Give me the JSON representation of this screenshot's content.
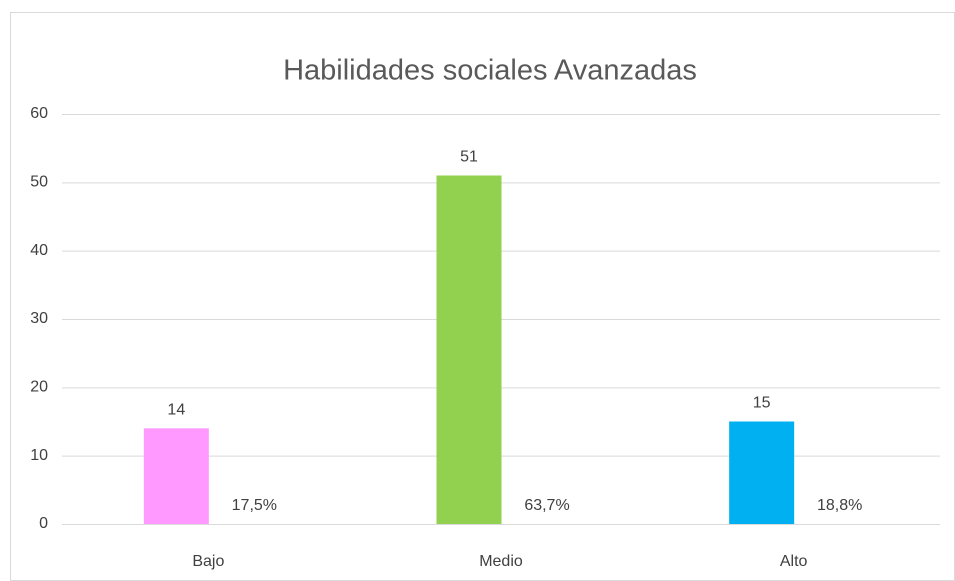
{
  "chart_data": {
    "type": "bar",
    "title": "Habilidades sociales Avanzadas",
    "categories": [
      "Bajo",
      "Medio",
      "Alto"
    ],
    "values": [
      14,
      51,
      15
    ],
    "colors": [
      "#ff99ff",
      "#92d050",
      "#00b0f0"
    ],
    "annotations": [
      "17,5%",
      "63,7%",
      "18,8%"
    ],
    "ylim": [
      0,
      60
    ],
    "yticks": [
      0,
      10,
      20,
      30,
      40,
      50,
      60
    ],
    "grid": true
  }
}
